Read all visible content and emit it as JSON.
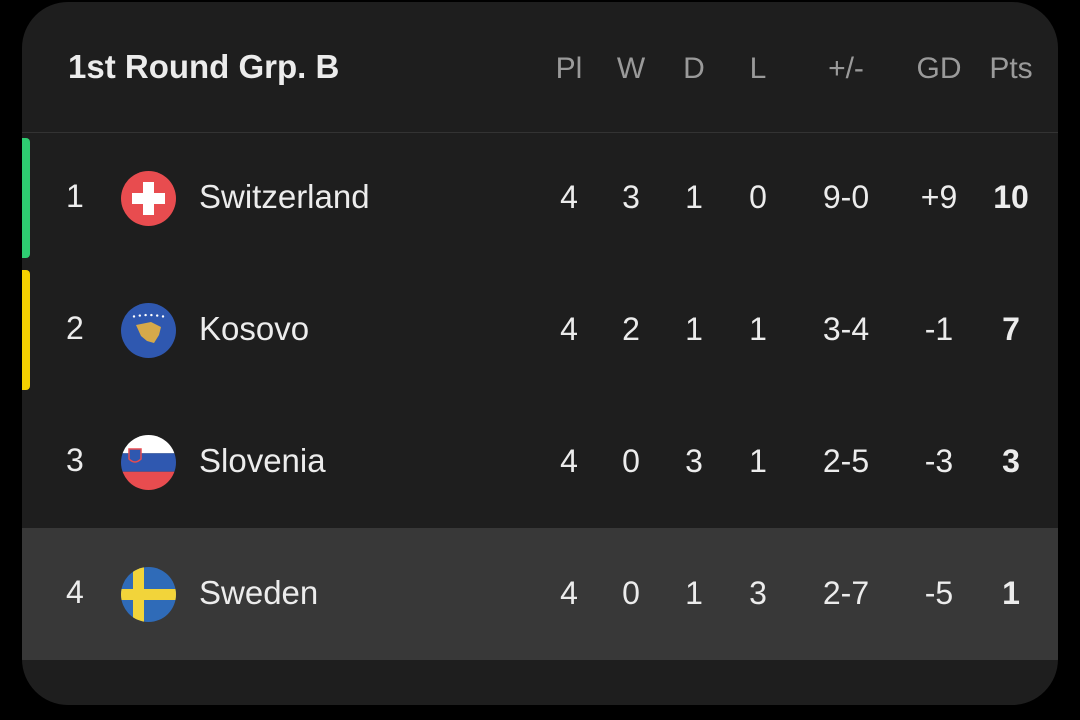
{
  "title": "1st Round Grp. B",
  "columns": [
    "Pl",
    "W",
    "D",
    "L",
    "+/-",
    "GD",
    "Pts"
  ],
  "rows": [
    {
      "rank": "1",
      "team": "Switzerland",
      "flag": "switzerland-flag-icon",
      "pl": "4",
      "w": "3",
      "d": "1",
      "l": "0",
      "goals": "9-0",
      "gd": "+9",
      "pts": "10",
      "indicator": "#2ecc71"
    },
    {
      "rank": "2",
      "team": "Kosovo",
      "flag": "kosovo-flag-icon",
      "pl": "4",
      "w": "2",
      "d": "1",
      "l": "1",
      "goals": "3-4",
      "gd": "-1",
      "pts": "7",
      "indicator": "#f5d000"
    },
    {
      "rank": "3",
      "team": "Slovenia",
      "flag": "slovenia-flag-icon",
      "pl": "4",
      "w": "0",
      "d": "3",
      "l": "1",
      "goals": "2-5",
      "gd": "-3",
      "pts": "3",
      "indicator": ""
    },
    {
      "rank": "4",
      "team": "Sweden",
      "flag": "sweden-flag-icon",
      "pl": "4",
      "w": "0",
      "d": "1",
      "l": "3",
      "goals": "2-7",
      "gd": "-5",
      "pts": "1",
      "indicator": "",
      "highlighted": true
    }
  ]
}
